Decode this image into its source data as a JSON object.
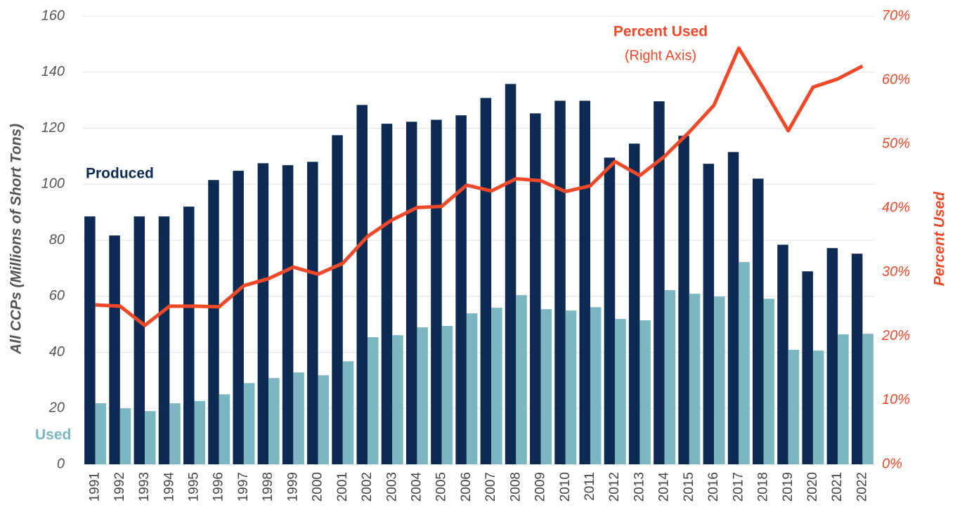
{
  "chart_data": {
    "type": "bar_line",
    "y_axis_label": "All CCPs (Millions of Short Tons)",
    "y2_axis_label": "Percent Used",
    "annotations": [
      "(Right Axis)"
    ],
    "categories": [
      "1991",
      "1992",
      "1993",
      "1994",
      "1995",
      "1996",
      "1997",
      "1998",
      "1999",
      "2000",
      "2001",
      "2002",
      "2003",
      "2004",
      "2005",
      "2006",
      "2007",
      "2008",
      "2009",
      "2010",
      "2011",
      "2012",
      "2013",
      "2014",
      "2015",
      "2016",
      "2017",
      "2018",
      "2019",
      "2020",
      "2021",
      "2022"
    ],
    "series": [
      {
        "name": "Produced",
        "color": "#0d2b52",
        "kind": "bar",
        "values": [
          88.5,
          81.7,
          88.5,
          88.5,
          92,
          101.5,
          104.8,
          107.5,
          106.8,
          108,
          117.5,
          128.3,
          121.6,
          122.3,
          123,
          124.6,
          130.8,
          135.8,
          125.3,
          129.8,
          129.8,
          109.5,
          114.5,
          129.6,
          117.3,
          107.3,
          111.5,
          102,
          78.4,
          68.9,
          77.2,
          75.2
        ]
      },
      {
        "name": "Used",
        "color": "#7bb6c1",
        "kind": "bar",
        "values": [
          21.8,
          20,
          19,
          21.8,
          22.6,
          25,
          29,
          30.8,
          32.8,
          31.8,
          36.8,
          45.4,
          46.1,
          48.9,
          49.4,
          53.9,
          55.9,
          60.4,
          55.4,
          54.9,
          56.1,
          51.9,
          51.4,
          62.2,
          60.9,
          59.9,
          72.2,
          59.1,
          40.9,
          40.6,
          46.4,
          46.6
        ]
      },
      {
        "name": "Percent Used",
        "color": "#f0492a",
        "kind": "line",
        "axis": "y2",
        "values": [
          24.9,
          24.7,
          21.7,
          24.7,
          24.7,
          24.6,
          27.9,
          29,
          30.8,
          29.7,
          31.4,
          35.6,
          38.2,
          40.1,
          40.3,
          43.6,
          42.7,
          44.6,
          44.3,
          42.6,
          43.5,
          47.3,
          45.1,
          48.1,
          51.9,
          56.1,
          65,
          58.7,
          52.1,
          58.9,
          60.2,
          62.2
        ]
      }
    ],
    "ylim": [
      0,
      160
    ],
    "yticks": [
      0,
      20,
      40,
      60,
      80,
      100,
      120,
      140,
      160
    ],
    "y2lim": [
      0,
      70
    ],
    "y2ticks": [
      {
        "value": 0,
        "label": "0%"
      },
      {
        "value": 10,
        "label": "10%"
      },
      {
        "value": 20,
        "label": "20%"
      },
      {
        "value": 30,
        "label": "30%"
      },
      {
        "value": 40,
        "label": "40%"
      },
      {
        "value": 50,
        "label": "50%"
      },
      {
        "value": 60,
        "label": "60%"
      },
      {
        "value": 70,
        "label": "70%"
      }
    ],
    "grid": true
  }
}
